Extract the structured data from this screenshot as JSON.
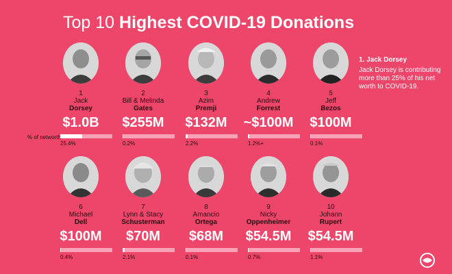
{
  "title": {
    "light": "Top 10",
    "bold": "Highest COVID-19 Donations"
  },
  "networth_label": "% of networth",
  "note": {
    "title": "1. Jack Dorsey",
    "body": "Jack Dorsey is contributing more than 25% of his net worth to COVID-19."
  },
  "donors": [
    {
      "rank": "1",
      "first": "Jack",
      "last": "Dorsey",
      "amount": "$1.0B",
      "pct": "25.4%",
      "pct_value": 25.4
    },
    {
      "rank": "2",
      "first": "Bill & Melinda",
      "last": "Gates",
      "amount": "$255M",
      "pct": "0.2%",
      "pct_value": 0.2
    },
    {
      "rank": "3",
      "first": "Azim",
      "last": "Premji",
      "amount": "$132M",
      "pct": "2.2%",
      "pct_value": 2.2
    },
    {
      "rank": "4",
      "first": "Andrew",
      "last": "Forrest",
      "amount": "~$100M",
      "pct": "1.2%+",
      "pct_value": 1.2
    },
    {
      "rank": "5",
      "first": "Jeff",
      "last": "Bezos",
      "amount": "$100M",
      "pct": "0.1%",
      "pct_value": 0.1
    },
    {
      "rank": "6",
      "first": "Michael",
      "last": "Dell",
      "amount": "$100M",
      "pct": "0.4%",
      "pct_value": 0.4
    },
    {
      "rank": "7",
      "first": "Lynn & Stacy",
      "last": "Schusterman",
      "amount": "$70M",
      "pct": "2.1%",
      "pct_value": 2.1
    },
    {
      "rank": "8",
      "first": "Amancio",
      "last": "Ortega",
      "amount": "$68M",
      "pct": "0.1%",
      "pct_value": 0.1
    },
    {
      "rank": "9",
      "first": "Nicky",
      "last": "Oppenheimer",
      "amount": "$54.5M",
      "pct": "0.7%",
      "pct_value": 0.7
    },
    {
      "rank": "10",
      "first": "Johann",
      "last": "Rupert",
      "amount": "$54.5M",
      "pct": "1.1%",
      "pct_value": 1.1
    }
  ],
  "colors": {
    "background": "#ee456a",
    "bar_track": "#f7a3b5",
    "bar_fill": "#ffffff",
    "dark_text": "#2a0a12"
  }
}
